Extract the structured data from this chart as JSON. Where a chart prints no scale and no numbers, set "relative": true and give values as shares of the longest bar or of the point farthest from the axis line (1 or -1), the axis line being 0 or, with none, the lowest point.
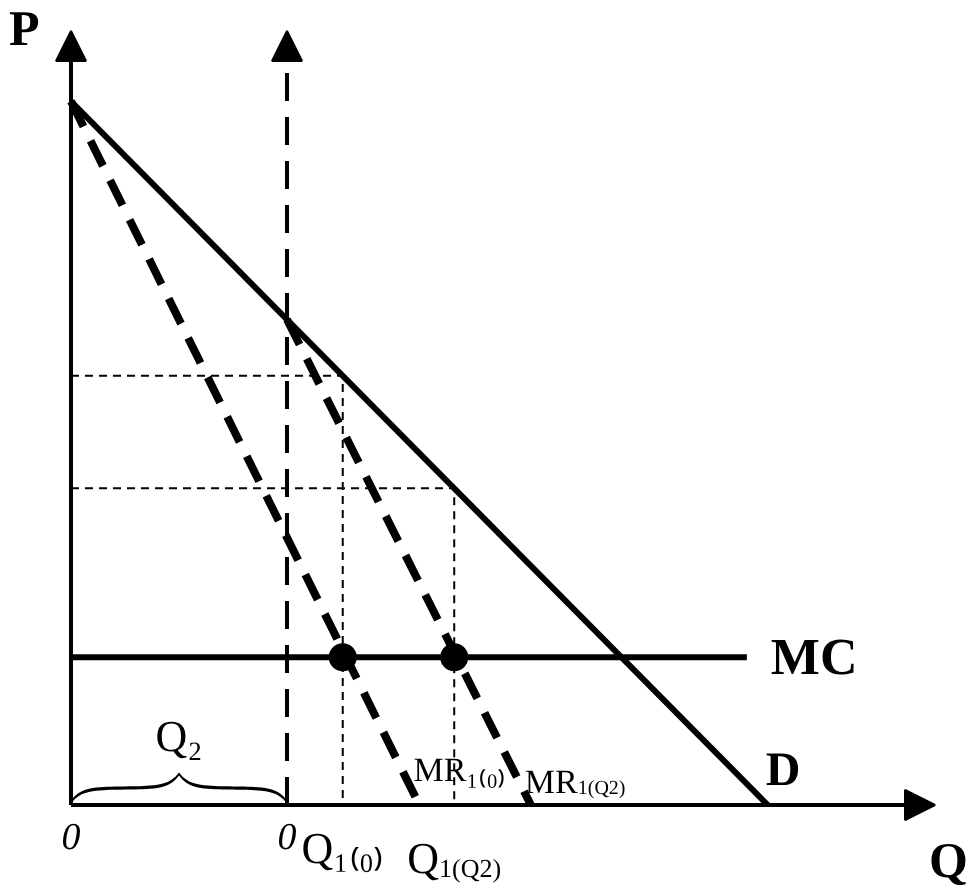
{
  "chart_data": {
    "type": "line",
    "relative": true,
    "xlabel": "Q",
    "ylabel": "P",
    "xlim": [
      0,
      1.24
    ],
    "xticks": [
      0,
      {
        "value": 0.31,
        "label": "0"
      },
      {
        "value": 0.39,
        "label": "Q₁₍₀₎"
      },
      {
        "value": 0.55,
        "label": "Q$_{1(Q2)}$"
      }
    ],
    "tick_labels": "x",
    "series": [
      {
        "color": "#000000",
        "line_style": "dotted",
        "x": [
          0,
          0.39,
          0.39
        ],
        "values": [
          0.61,
          0.61,
          0
        ]
      },
      {
        "color": "#000000",
        "line_style": "dotted",
        "x": [
          0,
          0.55,
          0.55
        ],
        "values": [
          0.45,
          0.45,
          0
        ]
      },
      {
        "name": "MR₁₍₀₎",
        "color": "#000000",
        "line_style": "dashed",
        "x": [
          0,
          0.5
        ],
        "values": [
          1,
          0
        ]
      },
      {
        "name": "MR$_{1(Q2)}$",
        "color": "#000000",
        "line_style": "dashed",
        "x": [
          0.31,
          0.66
        ],
        "values": [
          0.69,
          0
        ]
      },
      {
        "name": "D",
        "color": "#000000",
        "line_style": "solid",
        "x": [
          0,
          1
        ],
        "values": [
          1,
          0
        ]
      },
      {
        "name": "MC",
        "color": "#000000",
        "line_style": "solid",
        "x": [
          0,
          0.97
        ],
        "values": [
          0.21,
          0.21
        ]
      },
      {
        "type": "scatter",
        "color": "#000000",
        "marker": "circle",
        "x": [
          0.39,
          0.55
        ],
        "values": [
          0.21,
          0.21
        ]
      }
    ],
    "ref_lines": [
      {
        "axis": "x",
        "value": 0.31,
        "line_style": "dashed",
        "color": "#000000"
      }
    ],
    "annotations": [
      "Q₂"
    ]
  }
}
